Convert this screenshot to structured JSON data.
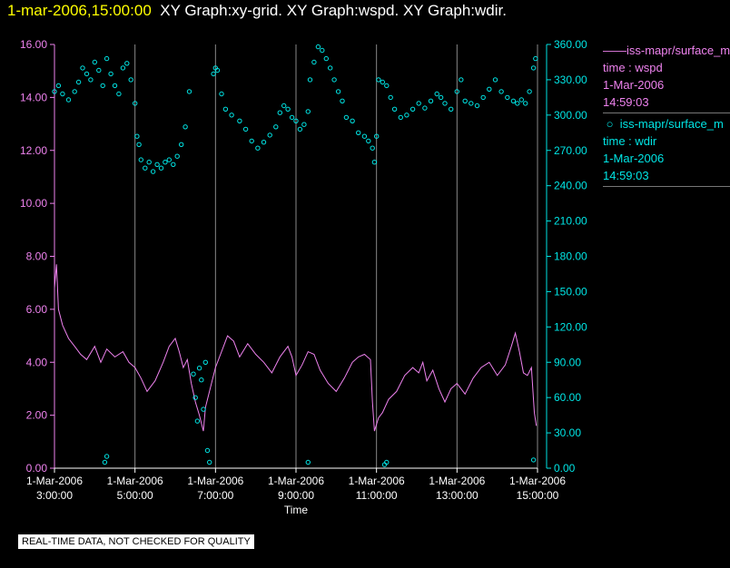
{
  "header": {
    "timestamp": "1-mar-2006,15:00:00",
    "graphs": "XY Graph:xy-grid.  XY Graph:wspd.  XY Graph:wdir."
  },
  "legend": [
    {
      "label": "iss-mapr/surface_m",
      "line1": "time : wspd",
      "line2": "1-Mar-2006",
      "line3": "14:59:03",
      "marker": "line"
    },
    {
      "label": "iss-mapr/surface_m",
      "line1": "time : wdir",
      "line2": "1-Mar-2006",
      "line3": "14:59:03",
      "marker": "circle"
    }
  ],
  "disclaimer": "REAL-TIME DATA, NOT CHECKED FOR QUALITY",
  "colors": {
    "wspd": "#ee82ee",
    "wdir": "#00e5e5",
    "grid": "#888888",
    "timestamp": "#ffff00",
    "text": "#ffffff"
  },
  "chart_data": {
    "type": "line",
    "xlabel": "Time",
    "x_ticks": [
      {
        "t": 3,
        "date": "1-Mar-2006",
        "time": "3:00:00"
      },
      {
        "t": 5,
        "date": "1-Mar-2006",
        "time": "5:00:00"
      },
      {
        "t": 7,
        "date": "1-Mar-2006",
        "time": "7:00:00"
      },
      {
        "t": 9,
        "date": "1-Mar-2006",
        "time": "9:00:00"
      },
      {
        "t": 11,
        "date": "1-Mar-2006",
        "time": "11:00:00"
      },
      {
        "t": 13,
        "date": "1-Mar-2006",
        "time": "13:00:00"
      },
      {
        "t": 15,
        "date": "1-Mar-2006",
        "time": "15:00:00"
      }
    ],
    "xlim": [
      3,
      15
    ],
    "left_axis": {
      "ylim": [
        0,
        16
      ],
      "ticks": [
        "0.00",
        "2.00",
        "4.00",
        "6.00",
        "8.00",
        "10.00",
        "12.00",
        "14.00",
        "16.00"
      ]
    },
    "right_axis": {
      "ylim": [
        0,
        360
      ],
      "ticks": [
        "0.00",
        "30.00",
        "60.00",
        "90.00",
        "120.00",
        "150.00",
        "180.00",
        "210.00",
        "240.00",
        "270.00",
        "300.00",
        "330.00",
        "360.00"
      ]
    },
    "grid": "vertical",
    "series": [
      {
        "name": "wspd",
        "style": "line",
        "axis": "left",
        "points": [
          [
            3.0,
            6.8
          ],
          [
            3.05,
            7.7
          ],
          [
            3.1,
            6.0
          ],
          [
            3.2,
            5.4
          ],
          [
            3.35,
            4.9
          ],
          [
            3.5,
            4.6
          ],
          [
            3.65,
            4.3
          ],
          [
            3.8,
            4.1
          ],
          [
            4.0,
            4.6
          ],
          [
            4.15,
            4.0
          ],
          [
            4.3,
            4.5
          ],
          [
            4.5,
            4.2
          ],
          [
            4.7,
            4.4
          ],
          [
            4.85,
            4.0
          ],
          [
            5.0,
            3.8
          ],
          [
            5.15,
            3.4
          ],
          [
            5.3,
            2.9
          ],
          [
            5.5,
            3.3
          ],
          [
            5.7,
            4.0
          ],
          [
            5.85,
            4.6
          ],
          [
            6.0,
            4.9
          ],
          [
            6.1,
            4.4
          ],
          [
            6.2,
            3.8
          ],
          [
            6.3,
            4.1
          ],
          [
            6.4,
            3.2
          ],
          [
            6.5,
            2.5
          ],
          [
            6.6,
            2.0
          ],
          [
            6.7,
            1.4
          ],
          [
            6.75,
            2.3
          ],
          [
            6.85,
            2.9
          ],
          [
            7.0,
            3.8
          ],
          [
            7.15,
            4.4
          ],
          [
            7.3,
            5.0
          ],
          [
            7.45,
            4.8
          ],
          [
            7.6,
            4.2
          ],
          [
            7.8,
            4.7
          ],
          [
            8.0,
            4.3
          ],
          [
            8.2,
            4.0
          ],
          [
            8.4,
            3.6
          ],
          [
            8.6,
            4.2
          ],
          [
            8.8,
            4.6
          ],
          [
            8.9,
            4.2
          ],
          [
            9.0,
            3.5
          ],
          [
            9.15,
            3.9
          ],
          [
            9.3,
            4.4
          ],
          [
            9.45,
            4.3
          ],
          [
            9.6,
            3.7
          ],
          [
            9.8,
            3.2
          ],
          [
            10.0,
            2.9
          ],
          [
            10.2,
            3.4
          ],
          [
            10.4,
            4.0
          ],
          [
            10.55,
            4.2
          ],
          [
            10.7,
            4.3
          ],
          [
            10.85,
            4.1
          ],
          [
            10.9,
            2.5
          ],
          [
            10.95,
            1.4
          ],
          [
            11.05,
            1.9
          ],
          [
            11.15,
            2.1
          ],
          [
            11.3,
            2.6
          ],
          [
            11.5,
            2.9
          ],
          [
            11.7,
            3.5
          ],
          [
            11.9,
            3.8
          ],
          [
            12.05,
            3.6
          ],
          [
            12.15,
            4.0
          ],
          [
            12.25,
            3.3
          ],
          [
            12.4,
            3.7
          ],
          [
            12.55,
            3.0
          ],
          [
            12.7,
            2.5
          ],
          [
            12.85,
            3.0
          ],
          [
            13.0,
            3.2
          ],
          [
            13.2,
            2.8
          ],
          [
            13.4,
            3.4
          ],
          [
            13.6,
            3.8
          ],
          [
            13.8,
            4.0
          ],
          [
            14.0,
            3.5
          ],
          [
            14.2,
            3.9
          ],
          [
            14.35,
            4.6
          ],
          [
            14.45,
            5.1
          ],
          [
            14.55,
            4.4
          ],
          [
            14.65,
            3.6
          ],
          [
            14.75,
            3.5
          ],
          [
            14.85,
            3.8
          ],
          [
            14.92,
            2.1
          ],
          [
            14.97,
            1.6
          ]
        ]
      },
      {
        "name": "wdir",
        "style": "circle",
        "axis": "right",
        "points": [
          [
            3.0,
            320
          ],
          [
            3.1,
            325
          ],
          [
            3.2,
            318
          ],
          [
            3.35,
            313
          ],
          [
            3.5,
            320
          ],
          [
            3.6,
            328
          ],
          [
            3.7,
            340
          ],
          [
            3.8,
            335
          ],
          [
            3.9,
            330
          ],
          [
            4.0,
            345
          ],
          [
            4.1,
            338
          ],
          [
            4.2,
            325
          ],
          [
            4.3,
            348
          ],
          [
            4.4,
            335
          ],
          [
            4.5,
            325
          ],
          [
            4.6,
            318
          ],
          [
            4.7,
            340
          ],
          [
            4.8,
            344
          ],
          [
            4.9,
            330
          ],
          [
            5.0,
            310
          ],
          [
            5.05,
            282
          ],
          [
            5.1,
            275
          ],
          [
            5.15,
            262
          ],
          [
            5.25,
            255
          ],
          [
            5.35,
            260
          ],
          [
            5.45,
            252
          ],
          [
            5.55,
            258
          ],
          [
            5.65,
            255
          ],
          [
            5.75,
            260
          ],
          [
            5.85,
            262
          ],
          [
            5.95,
            258
          ],
          [
            6.05,
            265
          ],
          [
            6.15,
            275
          ],
          [
            6.25,
            290
          ],
          [
            6.35,
            320
          ],
          [
            6.45,
            80
          ],
          [
            6.5,
            60
          ],
          [
            6.55,
            40
          ],
          [
            6.6,
            85
          ],
          [
            6.65,
            75
          ],
          [
            6.7,
            50
          ],
          [
            6.75,
            90
          ],
          [
            6.8,
            15
          ],
          [
            6.85,
            5
          ],
          [
            6.95,
            335
          ],
          [
            7.0,
            340
          ],
          [
            7.05,
            338
          ],
          [
            7.15,
            318
          ],
          [
            7.25,
            305
          ],
          [
            7.4,
            300
          ],
          [
            7.6,
            295
          ],
          [
            7.75,
            288
          ],
          [
            7.9,
            278
          ],
          [
            8.05,
            272
          ],
          [
            8.2,
            277
          ],
          [
            8.35,
            283
          ],
          [
            8.5,
            290
          ],
          [
            8.6,
            302
          ],
          [
            8.7,
            308
          ],
          [
            8.8,
            305
          ],
          [
            8.9,
            298
          ],
          [
            9.0,
            295
          ],
          [
            9.1,
            288
          ],
          [
            9.2,
            292
          ],
          [
            9.3,
            303
          ],
          [
            9.35,
            330
          ],
          [
            9.45,
            345
          ],
          [
            9.55,
            358
          ],
          [
            9.65,
            355
          ],
          [
            9.75,
            348
          ],
          [
            9.85,
            340
          ],
          [
            9.95,
            330
          ],
          [
            10.05,
            320
          ],
          [
            10.15,
            312
          ],
          [
            10.25,
            298
          ],
          [
            10.4,
            295
          ],
          [
            10.55,
            285
          ],
          [
            10.7,
            282
          ],
          [
            10.8,
            278
          ],
          [
            10.9,
            272
          ],
          [
            10.95,
            260
          ],
          [
            11.0,
            282
          ],
          [
            11.05,
            330
          ],
          [
            11.15,
            328
          ],
          [
            11.25,
            325
          ],
          [
            11.35,
            315
          ],
          [
            11.45,
            305
          ],
          [
            11.6,
            298
          ],
          [
            11.75,
            300
          ],
          [
            11.9,
            305
          ],
          [
            12.05,
            310
          ],
          [
            12.2,
            306
          ],
          [
            12.35,
            312
          ],
          [
            12.5,
            318
          ],
          [
            12.6,
            315
          ],
          [
            12.7,
            310
          ],
          [
            12.85,
            305
          ],
          [
            13.0,
            320
          ],
          [
            13.1,
            330
          ],
          [
            13.2,
            312
          ],
          [
            13.35,
            310
          ],
          [
            13.5,
            308
          ],
          [
            13.65,
            315
          ],
          [
            13.8,
            322
          ],
          [
            13.95,
            330
          ],
          [
            14.1,
            320
          ],
          [
            14.25,
            315
          ],
          [
            14.4,
            312
          ],
          [
            14.5,
            310
          ],
          [
            14.6,
            313
          ],
          [
            14.7,
            310
          ],
          [
            14.8,
            320
          ],
          [
            14.9,
            340
          ],
          [
            14.95,
            348
          ],
          [
            4.25,
            5
          ],
          [
            4.3,
            10
          ],
          [
            9.3,
            5
          ],
          [
            11.2,
            3
          ],
          [
            11.25,
            5
          ],
          [
            14.9,
            7
          ]
        ]
      }
    ]
  }
}
